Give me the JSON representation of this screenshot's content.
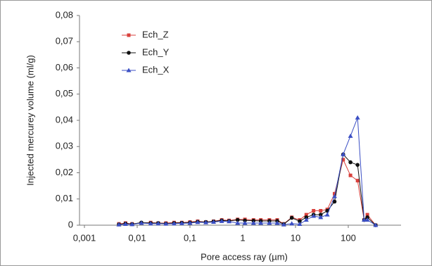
{
  "chart_data": {
    "type": "line",
    "x_label": "Pore access ray (µm)",
    "y_label": "Injected mercurey volume (ml/g)",
    "x": [
      0.0045,
      0.006,
      0.008,
      0.012,
      0.018,
      0.025,
      0.035,
      0.05,
      0.07,
      0.1,
      0.14,
      0.2,
      0.28,
      0.4,
      0.55,
      0.8,
      1.1,
      1.6,
      2.2,
      3.2,
      4.5,
      6,
      8.5,
      12,
      16,
      22,
      30,
      40,
      55,
      80,
      110,
      150,
      200,
      230,
      330
    ],
    "series": [
      {
        "name": "Ech_Z",
        "color": "#d9413c",
        "marker": "square",
        "values": [
          0.0005,
          0.0008,
          0.0005,
          0.0008,
          0.001,
          0.0008,
          0.0008,
          0.001,
          0.001,
          0.0012,
          0.0015,
          0.0012,
          0.0015,
          0.002,
          0.0018,
          0.0022,
          0.0022,
          0.002,
          0.002,
          0.002,
          0.002,
          0.0005,
          0.003,
          0.002,
          0.004,
          0.0055,
          0.0055,
          0.006,
          0.012,
          0.025,
          0.019,
          0.017,
          0.002,
          0.004,
          0
        ]
      },
      {
        "name": "Ech_Y",
        "color": "#111111",
        "marker": "circle",
        "values": [
          0.0003,
          0.0006,
          0.0004,
          0.001,
          0.0008,
          0.0008,
          0.0006,
          0.0008,
          0.0009,
          0.001,
          0.0013,
          0.0012,
          0.0014,
          0.0018,
          0.0016,
          0.002,
          0.0018,
          0.0017,
          0.0016,
          0.0016,
          0.0016,
          0.0004,
          0.0028,
          0.0015,
          0.003,
          0.004,
          0.004,
          0.0055,
          0.009,
          0.027,
          0.024,
          0.023,
          0.002,
          0.003,
          0
        ]
      },
      {
        "name": "Ech_X",
        "color": "#3b4fc4",
        "marker": "triangle",
        "values": [
          0.0002,
          0.0004,
          0.0003,
          0.0008,
          0.0006,
          0.0006,
          0.0005,
          0.0006,
          0.0007,
          0.0008,
          0.0011,
          0.001,
          0.0012,
          0.0015,
          0.0014,
          0.0008,
          0.0008,
          0.0008,
          0.0008,
          0.0008,
          0.0008,
          0.0002,
          0.0006,
          0.0004,
          0.002,
          0.0035,
          0.003,
          0.004,
          0.011,
          0.027,
          0.034,
          0.041,
          0.002,
          0.002,
          0
        ]
      }
    ],
    "xlim": [
      0.001,
      1000
    ],
    "x_log": true,
    "xticks": [
      {
        "value": 0.001,
        "label": "0,001"
      },
      {
        "value": 0.01,
        "label": "0,01"
      },
      {
        "value": 0.1,
        "label": "0,1"
      },
      1,
      10,
      100
    ],
    "ylim": [
      0,
      0.08
    ],
    "yticks": [
      0,
      {
        "value": 0.01,
        "label": "0,01"
      },
      {
        "value": 0.02,
        "label": "0,02"
      },
      {
        "value": 0.03,
        "label": "0,03"
      },
      {
        "value": 0.04,
        "label": "0,04"
      },
      {
        "value": 0.05,
        "label": "0,05"
      },
      {
        "value": 0.06,
        "label": "0,06"
      },
      {
        "value": 0.07,
        "label": "0,07"
      },
      {
        "value": 0.08,
        "label": "0,08"
      }
    ],
    "grid": false,
    "legend": "upper-left"
  }
}
